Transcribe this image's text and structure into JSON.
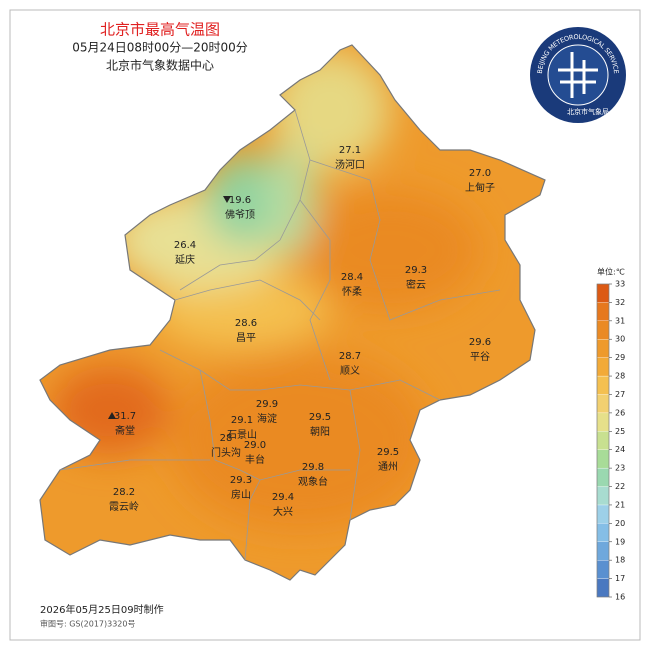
{
  "header": {
    "title": "北京市最高气温图",
    "subtitle": "05月24日08时00分—20时00分",
    "org": "北京市气象数据中心"
  },
  "logo": {
    "ring_text": "BEIJING METEOROLOGICAL SERVICE",
    "name": "北京市气象局"
  },
  "legend": {
    "unit": "单位:℃",
    "ticks": [
      16,
      17,
      18,
      19,
      20,
      21,
      22,
      23,
      24,
      25,
      26,
      27,
      28,
      29,
      30,
      31,
      32,
      33
    ],
    "colors": [
      "#4a78c0",
      "#5a90d0",
      "#6fa8dc",
      "#85bee6",
      "#9dd0e8",
      "#a8dcd0",
      "#9ad8b0",
      "#a8dc98",
      "#c8e090",
      "#e6e08a",
      "#f2d070",
      "#f4c050",
      "#f2aa38",
      "#ee9a2c",
      "#ea8a24",
      "#e6781e",
      "#dc5a14"
    ]
  },
  "stations": [
    {
      "value": "27.1",
      "name": "汤河口"
    },
    {
      "value": "27.0",
      "name": "上甸子"
    },
    {
      "value": "19.6",
      "name": "佛爷顶"
    },
    {
      "value": "26.4",
      "name": "延庆"
    },
    {
      "value": "28.4",
      "name": "怀柔"
    },
    {
      "value": "29.3",
      "name": "密云"
    },
    {
      "value": "28.6",
      "name": "昌平"
    },
    {
      "value": "28.7",
      "name": "顺义"
    },
    {
      "value": "29.6",
      "name": "平谷"
    },
    {
      "value": "31.7",
      "name": "斋堂"
    },
    {
      "value": "29.9",
      "name": "海淀"
    },
    {
      "value": "29.1",
      "name": "石景山"
    },
    {
      "value": "29.5",
      "name": "朝阳"
    },
    {
      "value": "28",
      "name": "门头沟"
    },
    {
      "value": "29.0",
      "name": "丰台"
    },
    {
      "value": "29.5",
      "name": "通州"
    },
    {
      "value": "29.8",
      "name": "观象台"
    },
    {
      "value": "29.3",
      "name": "房山"
    },
    {
      "value": "29.4",
      "name": "大兴"
    },
    {
      "value": "28.2",
      "name": "霞云岭"
    }
  ],
  "footer": {
    "made": "2026年05月25日09时制作",
    "approval": "审图号: GS(2017)3320号"
  }
}
